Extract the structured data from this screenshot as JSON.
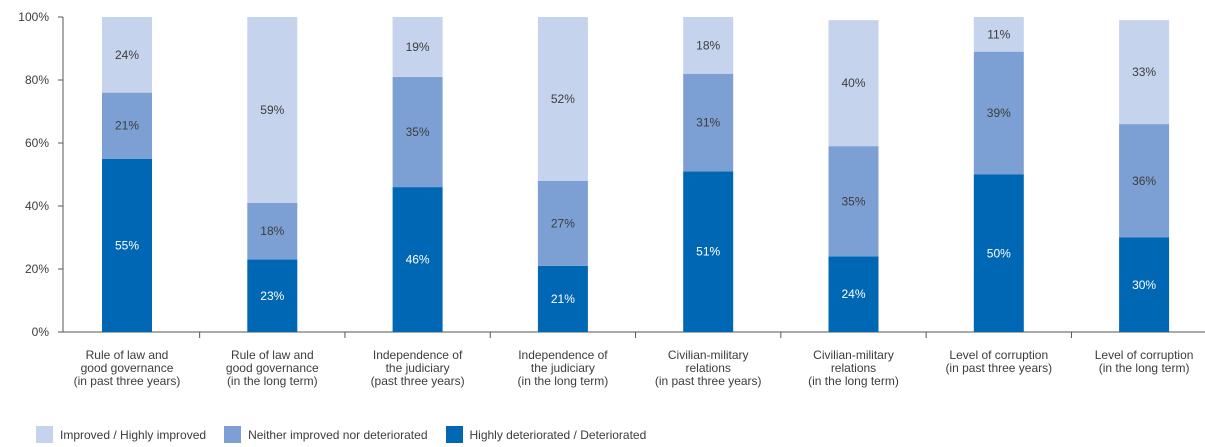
{
  "chart_data": {
    "type": "bar",
    "stacked": true,
    "ylim": [
      0,
      100
    ],
    "yticks": [
      0,
      20,
      40,
      60,
      80,
      100
    ],
    "ytick_labels": [
      "0%",
      "20%",
      "40%",
      "60%",
      "80%",
      "100%"
    ],
    "categories": [
      [
        "Rule of law and",
        "good governance",
        "(in past three years)"
      ],
      [
        "Rule of law and",
        "good governance",
        "(in the long term)"
      ],
      [
        "Independence of",
        "the judiciary",
        "(past three years)"
      ],
      [
        "Independence of",
        "the judiciary",
        "(in the long term)"
      ],
      [
        "Civilian-military",
        "relations",
        "(in past three years)"
      ],
      [
        "Civilian-military",
        "relations",
        "(in the long term)"
      ],
      [
        "Level of corruption",
        "(in past three years)"
      ],
      [
        "Level of corruption",
        "(in the long term)"
      ]
    ],
    "series": [
      {
        "name": "Highly deteriorated / Deteriorated",
        "color": "#0067b4",
        "label_color": "#ffffff",
        "values": [
          55,
          23,
          46,
          21,
          51,
          24,
          50,
          30
        ],
        "labels": [
          "55%",
          "23%",
          "46%",
          "21%",
          "51%",
          "24%",
          "50%",
          "30%"
        ]
      },
      {
        "name": "Neither improved nor deteriorated",
        "color": "#7da0d4",
        "label_color": "#3c3c3c",
        "values": [
          21,
          18,
          35,
          27,
          31,
          35,
          39,
          36
        ],
        "labels": [
          "21%",
          "18%",
          "35%",
          "27%",
          "31%",
          "35%",
          "39%",
          "36%"
        ]
      },
      {
        "name": "Improved / Highly improved",
        "color": "#c6d3ec",
        "label_color": "#3c3c3c",
        "values": [
          24,
          59,
          19,
          52,
          18,
          40,
          11,
          33
        ],
        "labels": [
          "24%",
          "59%",
          "19%",
          "52%",
          "18%",
          "40%",
          "11%",
          "33%"
        ]
      }
    ],
    "legend": {
      "placement": "bottom-left",
      "order": [
        2,
        1,
        0
      ]
    }
  }
}
